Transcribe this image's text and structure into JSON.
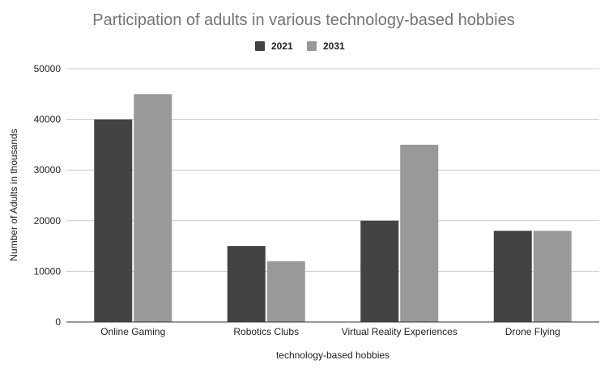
{
  "chart_data": {
    "type": "bar",
    "title": "Participation of adults in various technology-based hobbies",
    "xlabel": "technology-based hobbies",
    "ylabel": "Number of Adults in thousands",
    "categories": [
      "Online Gaming",
      "Robotics Clubs",
      "Virtual Reality Experiences",
      "Drone Flying"
    ],
    "series": [
      {
        "name": "2021",
        "values": [
          40000,
          15000,
          20000,
          18000
        ],
        "color": "#434343"
      },
      {
        "name": "2031",
        "values": [
          45000,
          12000,
          35000,
          18000
        ],
        "color": "#999999"
      }
    ],
    "ylim": [
      0,
      50000
    ],
    "yticks": [
      0,
      10000,
      20000,
      30000,
      40000,
      50000
    ],
    "grid": true,
    "legend": "top-center"
  }
}
